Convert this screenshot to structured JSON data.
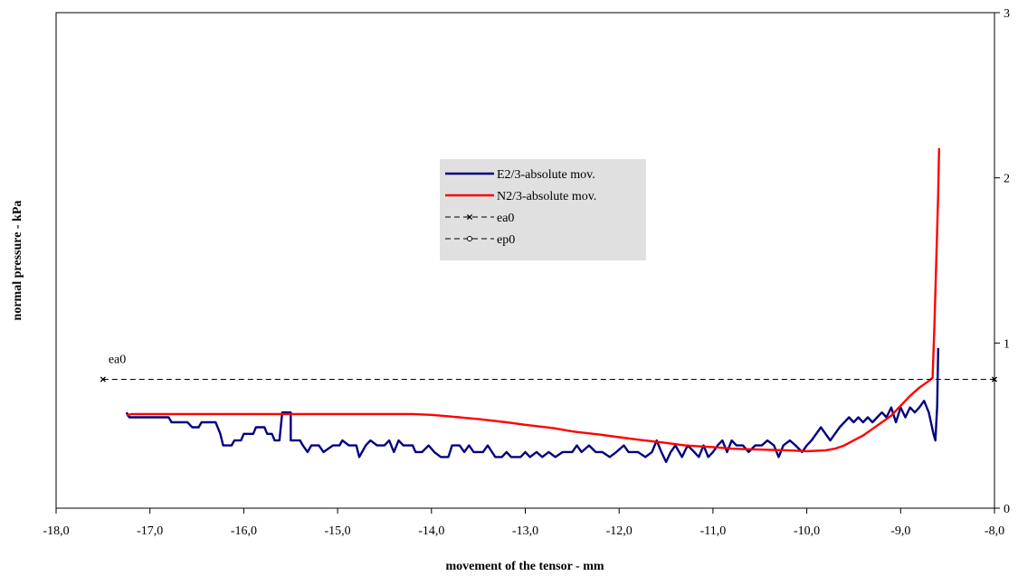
{
  "chart_data": {
    "type": "line",
    "xlabel": "movement of the tensor - mm",
    "ylabel": "normal pressure - kPa",
    "xlim": [
      -18,
      -8
    ],
    "ylim": [
      0,
      3
    ],
    "x_ticks": [
      "-18,0",
      "-17,0",
      "-16,0",
      "-15,0",
      "-14,0",
      "-13,0",
      "-12,0",
      "-11,0",
      "-10,0",
      "-9,0",
      "-8,0"
    ],
    "x_tick_values": [
      -18,
      -17,
      -16,
      -15,
      -14,
      -13,
      -12,
      -11,
      -10,
      -9,
      -8
    ],
    "y_ticks": [
      "0",
      "1",
      "2",
      "3"
    ],
    "y_tick_values": [
      0,
      1,
      2,
      3
    ],
    "y_axis_side": "right",
    "grid": false,
    "legend_position": "center",
    "annotations": [
      {
        "text": "ea0",
        "x": -17.5,
        "y": 0.78
      }
    ],
    "series": [
      {
        "name": "E2/3-absolute mov.",
        "color": "#000080",
        "style": "solid",
        "points": [
          [
            -17.25,
            0.58
          ],
          [
            -17.22,
            0.55
          ],
          [
            -17.0,
            0.55
          ],
          [
            -16.8,
            0.55
          ],
          [
            -16.77,
            0.52
          ],
          [
            -16.6,
            0.52
          ],
          [
            -16.55,
            0.49
          ],
          [
            -16.48,
            0.49
          ],
          [
            -16.45,
            0.52
          ],
          [
            -16.3,
            0.52
          ],
          [
            -16.25,
            0.45
          ],
          [
            -16.22,
            0.38
          ],
          [
            -16.13,
            0.38
          ],
          [
            -16.1,
            0.41
          ],
          [
            -16.03,
            0.41
          ],
          [
            -16.0,
            0.45
          ],
          [
            -15.9,
            0.45
          ],
          [
            -15.87,
            0.49
          ],
          [
            -15.78,
            0.49
          ],
          [
            -15.75,
            0.45
          ],
          [
            -15.7,
            0.45
          ],
          [
            -15.67,
            0.41
          ],
          [
            -15.62,
            0.41
          ],
          [
            -15.59,
            0.58
          ],
          [
            -15.5,
            0.58
          ],
          [
            -15.5,
            0.41
          ],
          [
            -15.4,
            0.41
          ],
          [
            -15.37,
            0.38
          ],
          [
            -15.32,
            0.34
          ],
          [
            -15.28,
            0.38
          ],
          [
            -15.2,
            0.38
          ],
          [
            -15.15,
            0.34
          ],
          [
            -15.05,
            0.38
          ],
          [
            -14.98,
            0.38
          ],
          [
            -14.95,
            0.41
          ],
          [
            -14.88,
            0.38
          ],
          [
            -14.8,
            0.38
          ],
          [
            -14.77,
            0.31
          ],
          [
            -14.7,
            0.38
          ],
          [
            -14.65,
            0.41
          ],
          [
            -14.58,
            0.38
          ],
          [
            -14.5,
            0.38
          ],
          [
            -14.45,
            0.41
          ],
          [
            -14.4,
            0.34
          ],
          [
            -14.35,
            0.41
          ],
          [
            -14.3,
            0.38
          ],
          [
            -14.2,
            0.38
          ],
          [
            -14.17,
            0.34
          ],
          [
            -14.1,
            0.34
          ],
          [
            -14.03,
            0.38
          ],
          [
            -13.97,
            0.34
          ],
          [
            -13.9,
            0.31
          ],
          [
            -13.82,
            0.31
          ],
          [
            -13.78,
            0.38
          ],
          [
            -13.7,
            0.38
          ],
          [
            -13.65,
            0.34
          ],
          [
            -13.6,
            0.38
          ],
          [
            -13.55,
            0.34
          ],
          [
            -13.45,
            0.34
          ],
          [
            -13.4,
            0.38
          ],
          [
            -13.32,
            0.31
          ],
          [
            -13.25,
            0.31
          ],
          [
            -13.2,
            0.34
          ],
          [
            -13.15,
            0.31
          ],
          [
            -13.05,
            0.31
          ],
          [
            -13.0,
            0.34
          ],
          [
            -12.95,
            0.31
          ],
          [
            -12.88,
            0.34
          ],
          [
            -12.82,
            0.31
          ],
          [
            -12.75,
            0.34
          ],
          [
            -12.68,
            0.31
          ],
          [
            -12.6,
            0.34
          ],
          [
            -12.5,
            0.34
          ],
          [
            -12.45,
            0.38
          ],
          [
            -12.4,
            0.34
          ],
          [
            -12.32,
            0.38
          ],
          [
            -12.25,
            0.34
          ],
          [
            -12.18,
            0.34
          ],
          [
            -12.1,
            0.31
          ],
          [
            -12.03,
            0.34
          ],
          [
            -11.95,
            0.38
          ],
          [
            -11.9,
            0.34
          ],
          [
            -11.8,
            0.34
          ],
          [
            -11.72,
            0.31
          ],
          [
            -11.65,
            0.34
          ],
          [
            -11.6,
            0.41
          ],
          [
            -11.55,
            0.34
          ],
          [
            -11.5,
            0.28
          ],
          [
            -11.45,
            0.34
          ],
          [
            -11.4,
            0.38
          ],
          [
            -11.33,
            0.31
          ],
          [
            -11.27,
            0.38
          ],
          [
            -11.2,
            0.34
          ],
          [
            -11.15,
            0.31
          ],
          [
            -11.1,
            0.38
          ],
          [
            -11.05,
            0.31
          ],
          [
            -11.0,
            0.34
          ],
          [
            -10.95,
            0.38
          ],
          [
            -10.9,
            0.41
          ],
          [
            -10.85,
            0.34
          ],
          [
            -10.8,
            0.41
          ],
          [
            -10.75,
            0.38
          ],
          [
            -10.68,
            0.38
          ],
          [
            -10.62,
            0.34
          ],
          [
            -10.55,
            0.38
          ],
          [
            -10.48,
            0.38
          ],
          [
            -10.42,
            0.41
          ],
          [
            -10.35,
            0.38
          ],
          [
            -10.3,
            0.31
          ],
          [
            -10.25,
            0.38
          ],
          [
            -10.18,
            0.41
          ],
          [
            -10.12,
            0.38
          ],
          [
            -10.05,
            0.34
          ],
          [
            -10.0,
            0.38
          ],
          [
            -9.95,
            0.41
          ],
          [
            -9.9,
            0.45
          ],
          [
            -9.85,
            0.49
          ],
          [
            -9.8,
            0.45
          ],
          [
            -9.75,
            0.41
          ],
          [
            -9.7,
            0.45
          ],
          [
            -9.65,
            0.49
          ],
          [
            -9.6,
            0.52
          ],
          [
            -9.55,
            0.55
          ],
          [
            -9.5,
            0.52
          ],
          [
            -9.45,
            0.55
          ],
          [
            -9.4,
            0.52
          ],
          [
            -9.35,
            0.55
          ],
          [
            -9.3,
            0.52
          ],
          [
            -9.25,
            0.55
          ],
          [
            -9.2,
            0.58
          ],
          [
            -9.15,
            0.55
          ],
          [
            -9.1,
            0.61
          ],
          [
            -9.05,
            0.52
          ],
          [
            -9.0,
            0.61
          ],
          [
            -8.95,
            0.55
          ],
          [
            -8.9,
            0.61
          ],
          [
            -8.85,
            0.58
          ],
          [
            -8.8,
            0.61
          ],
          [
            -8.75,
            0.65
          ],
          [
            -8.7,
            0.58
          ],
          [
            -8.65,
            0.45
          ],
          [
            -8.63,
            0.41
          ],
          [
            -8.61,
            0.62
          ],
          [
            -8.6,
            0.97
          ]
        ]
      },
      {
        "name": "N2/3-absolute mov.",
        "color": "#ff0000",
        "style": "solid",
        "points": [
          [
            -17.25,
            0.56
          ],
          [
            -17.2,
            0.57
          ],
          [
            -16.5,
            0.57
          ],
          [
            -15.5,
            0.57
          ],
          [
            -14.5,
            0.57
          ],
          [
            -14.2,
            0.57
          ],
          [
            -14.0,
            0.565
          ],
          [
            -13.8,
            0.555
          ],
          [
            -13.5,
            0.54
          ],
          [
            -13.2,
            0.52
          ],
          [
            -13.0,
            0.505
          ],
          [
            -12.7,
            0.485
          ],
          [
            -12.5,
            0.465
          ],
          [
            -12.2,
            0.445
          ],
          [
            -12.0,
            0.43
          ],
          [
            -11.8,
            0.415
          ],
          [
            -11.5,
            0.395
          ],
          [
            -11.3,
            0.38
          ],
          [
            -11.0,
            0.37
          ],
          [
            -10.8,
            0.36
          ],
          [
            -10.5,
            0.355
          ],
          [
            -10.2,
            0.35
          ],
          [
            -10.0,
            0.345
          ],
          [
            -9.8,
            0.35
          ],
          [
            -9.7,
            0.36
          ],
          [
            -9.6,
            0.38
          ],
          [
            -9.5,
            0.41
          ],
          [
            -9.4,
            0.44
          ],
          [
            -9.3,
            0.48
          ],
          [
            -9.2,
            0.52
          ],
          [
            -9.1,
            0.56
          ],
          [
            -9.0,
            0.62
          ],
          [
            -8.9,
            0.68
          ],
          [
            -8.8,
            0.73
          ],
          [
            -8.7,
            0.77
          ],
          [
            -8.66,
            0.79
          ],
          [
            -8.64,
            1.1
          ],
          [
            -8.62,
            1.5
          ],
          [
            -8.6,
            1.9
          ],
          [
            -8.59,
            2.18
          ]
        ]
      },
      {
        "name": "ea0",
        "color": "#000000",
        "style": "dashed",
        "marker": "x",
        "points": [
          [
            -17.5,
            0.78
          ],
          [
            -8.0,
            0.78
          ]
        ]
      },
      {
        "name": "ep0",
        "color": "#000000",
        "style": "dashed",
        "marker": "o",
        "points": []
      }
    ]
  }
}
